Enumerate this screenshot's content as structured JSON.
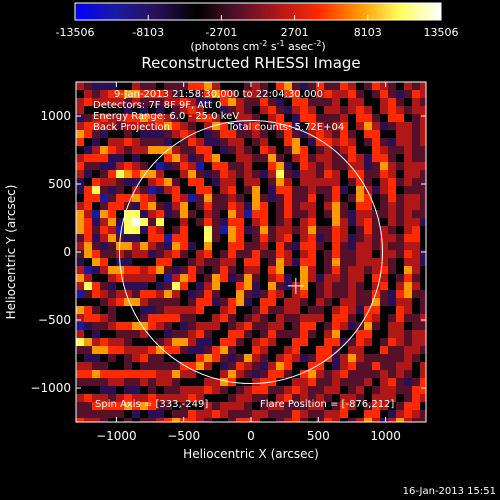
{
  "colors": {
    "background": "#000000",
    "foreground": "#ffffff",
    "colormap": [
      "#0000ff",
      "#1a1aa0",
      "#2a0f55",
      "#000000",
      "#55102a",
      "#b01818",
      "#ff2a00",
      "#ff9900",
      "#ffff60",
      "#ffffff"
    ]
  },
  "colorbar": {
    "tick_labels": [
      "-13506",
      "-8103",
      "-2701",
      "2701",
      "8103",
      "13506"
    ],
    "units_prefix": "(photons cm",
    "units_exp1": "-2",
    "units_mid": " s",
    "units_exp2": "-1",
    "units_mid2": " asec",
    "units_exp3": "-2",
    "units_suffix": ")",
    "range": [
      -13506,
      13506
    ]
  },
  "chart_data": {
    "type": "heatmap",
    "title": "Reconstructed RHESSI Image",
    "xlabel": "Heliocentric X (arcsec)",
    "ylabel": "Heliocentric Y (arcsec)",
    "xlim": [
      -1300,
      1300
    ],
    "ylim": [
      -1250,
      1250
    ],
    "x_ticks": [
      -1000,
      -500,
      0,
      500,
      1000
    ],
    "y_ticks": [
      -1000,
      -500,
      0,
      500,
      1000
    ],
    "x_tick_labels": [
      "−1000",
      "−500",
      "0",
      "500",
      "1000"
    ],
    "y_tick_labels": [
      "−1000",
      "−500",
      "0",
      "500",
      "1000"
    ],
    "solar_limb_radius": 977,
    "flare_position": [
      -876,
      212
    ],
    "spin_axis": [
      333,
      -249
    ],
    "annotations": [
      "9-Jan-2013 21:58:30.000 to 22:04:30.000",
      "Detectors: 7F 8F 9F, Att 0",
      "Energy Range: 6.0 - 25.0 keV",
      "Back Projection",
      "Total counts: 5.72E+04"
    ],
    "footer_left": "Spin Axis = [333,-249]",
    "footer_right": "Flare Position = [-876,212]"
  },
  "timestamp": "16-Jan-2013 15:51"
}
